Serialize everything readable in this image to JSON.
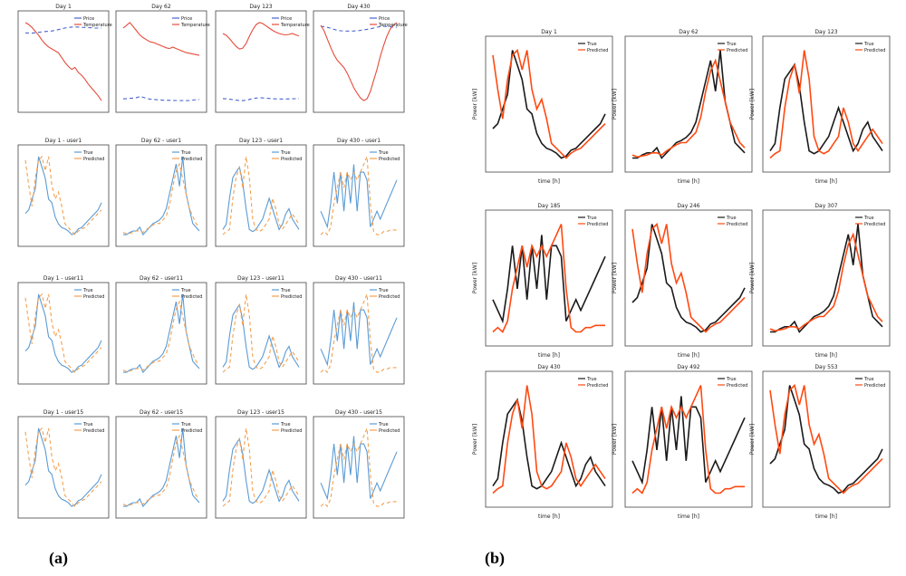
{
  "labels": {
    "a": "(a)",
    "b": "(b)"
  },
  "legend": {
    "price": "Price",
    "temperature": "Temperature",
    "true": "True",
    "predicted": "Predicted"
  },
  "axis": {
    "power": "Power [kW]",
    "time": "time [h]"
  },
  "colors": {
    "true_dark": "#1a1a1a",
    "pred_orange": "#ff4a12",
    "left_blue": "#5b9bd5",
    "left_orange": "#f5a04f",
    "left_red": "#e64b3b",
    "left_dashblue": "#4863cf"
  },
  "chart_data": [
    {
      "type": "line",
      "panel": "a",
      "title": "Day 1",
      "x": [
        0,
        1,
        2,
        3,
        4,
        5,
        6,
        7,
        8,
        9,
        10,
        11,
        12,
        13,
        14,
        15,
        16,
        17,
        18,
        19,
        20,
        21,
        22,
        23
      ],
      "series": [
        {
          "name": "Price",
          "values": [
            0.44,
            0.42,
            0.41,
            0.45,
            0.5,
            0.54,
            0.58,
            0.61,
            0.64,
            0.7,
            0.78,
            0.86,
            0.94,
            1.0,
            1.04,
            1.05,
            1.04,
            1.02,
            1.0,
            0.98,
            0.96,
            0.94,
            0.93,
            0.92
          ]
        },
        {
          "name": "Temperature",
          "values": [
            1.5,
            1.3,
            1.0,
            0.6,
            0.2,
            -0.3,
            -0.7,
            -1.0,
            -1.2,
            -1.4,
            -1.6,
            -2.1,
            -2.6,
            -3.0,
            -3.3,
            -3.1,
            -3.6,
            -3.9,
            -4.3,
            -4.8,
            -5.2,
            -5.6,
            -6.0,
            -6.5
          ]
        }
      ]
    },
    {
      "type": "line",
      "panel": "a",
      "title": "Day 62",
      "x": [
        0,
        1,
        2,
        3,
        4,
        5,
        6,
        7,
        8,
        9,
        10,
        11,
        12,
        13,
        14,
        15,
        16,
        17,
        18,
        19,
        20,
        21,
        22,
        23
      ],
      "series": [
        {
          "name": "Price",
          "values": [
            0.62,
            0.66,
            0.7,
            0.74,
            0.8,
            0.98,
            0.86,
            0.7,
            0.6,
            0.55,
            0.5,
            0.46,
            0.44,
            0.42,
            0.41,
            0.4,
            0.39,
            0.38,
            0.37,
            0.37,
            0.4,
            0.45,
            0.5,
            0.53
          ]
        },
        {
          "name": "Temperature",
          "values": [
            11.0,
            11.4,
            11.8,
            11.2,
            10.6,
            10.0,
            9.6,
            9.3,
            9.0,
            8.9,
            8.7,
            8.5,
            8.3,
            8.1,
            8.0,
            8.2,
            8.0,
            7.8,
            7.6,
            7.4,
            7.3,
            7.2,
            7.1,
            7.0
          ]
        }
      ]
    },
    {
      "type": "line",
      "panel": "a",
      "title": "Day 123",
      "x": [
        0,
        1,
        2,
        3,
        4,
        5,
        6,
        7,
        8,
        9,
        10,
        11,
        12,
        13,
        14,
        15,
        16,
        17,
        18,
        19,
        20,
        21,
        22,
        23
      ],
      "series": [
        {
          "name": "Price",
          "values": [
            0.78,
            0.74,
            0.66,
            0.55,
            0.44,
            0.36,
            0.34,
            0.42,
            0.6,
            0.78,
            0.9,
            0.96,
            0.94,
            0.88,
            0.82,
            0.76,
            0.72,
            0.7,
            0.69,
            0.7,
            0.72,
            0.74,
            0.76,
            0.78
          ]
        },
        {
          "name": "Temperature",
          "values": [
            15.0,
            14.6,
            13.9,
            13.0,
            12.2,
            11.6,
            11.8,
            12.8,
            14.4,
            15.8,
            16.9,
            17.4,
            17.2,
            16.7,
            16.2,
            15.7,
            15.3,
            15.0,
            14.8,
            14.7,
            14.8,
            15.0,
            14.7,
            14.5
          ]
        }
      ]
    },
    {
      "type": "line",
      "panel": "a",
      "title": "Day 430",
      "x": [
        0,
        1,
        2,
        3,
        4,
        5,
        6,
        7,
        8,
        9,
        10,
        11,
        12,
        13,
        14,
        15,
        16,
        17,
        18,
        19,
        20,
        21,
        22,
        23
      ],
      "series": [
        {
          "name": "Price",
          "values": [
            0.9,
            0.86,
            0.78,
            0.68,
            0.56,
            0.46,
            0.4,
            0.38,
            0.37,
            0.37,
            0.38,
            0.4,
            0.44,
            0.5,
            0.56,
            0.62,
            0.7,
            0.8,
            0.86,
            0.9,
            0.88,
            0.84,
            0.8,
            0.78
          ]
        },
        {
          "name": "Temperature",
          "values": [
            1.0,
            0.4,
            -0.5,
            -1.4,
            -2.2,
            -2.8,
            -3.2,
            -3.6,
            -4.2,
            -5.0,
            -5.8,
            -6.4,
            -6.9,
            -7.2,
            -7.0,
            -6.2,
            -5.0,
            -3.8,
            -2.4,
            -1.2,
            -0.2,
            0.6,
            1.0,
            1.3
          ]
        }
      ]
    },
    {
      "type": "line",
      "panel": "a",
      "title": "Day 1 - user1",
      "x": [
        0,
        1,
        2,
        3,
        4,
        5,
        6,
        7,
        8,
        9,
        10,
        11,
        12,
        13,
        14,
        15,
        16,
        17,
        18,
        19,
        20,
        21,
        22,
        23
      ],
      "series": [
        {
          "name": "True",
          "values": [
            1.1,
            1.15,
            1.3,
            1.45,
            1.9,
            1.75,
            1.6,
            1.3,
            1.25,
            1.05,
            0.95,
            0.9,
            0.88,
            0.85,
            0.8,
            0.82,
            0.88,
            0.9,
            0.95,
            1.0,
            1.05,
            1.1,
            1.15,
            1.25
          ]
        },
        {
          "name": "Predicted",
          "values": [
            1.85,
            1.5,
            1.2,
            1.6,
            1.85,
            1.9,
            1.7,
            1.9,
            1.5,
            1.3,
            1.4,
            1.2,
            0.95,
            0.9,
            0.85,
            0.8,
            0.85,
            0.88,
            0.9,
            0.95,
            1.0,
            1.05,
            1.1,
            1.15
          ]
        }
      ]
    },
    {
      "type": "line",
      "panel": "a",
      "title": "Day 62 - user1",
      "x": [
        0,
        1,
        2,
        3,
        4,
        5,
        6,
        7,
        8,
        9,
        10,
        11,
        12,
        13,
        14,
        15,
        16,
        17,
        18,
        19,
        20,
        21,
        22,
        23
      ],
      "series": [
        {
          "name": "True",
          "values": [
            0.95,
            0.95,
            0.98,
            1.0,
            1.0,
            1.05,
            0.95,
            1.0,
            1.05,
            1.1,
            1.12,
            1.15,
            1.2,
            1.3,
            1.5,
            1.7,
            1.9,
            1.6,
            2.0,
            1.5,
            1.3,
            1.1,
            1.05,
            1.0
          ]
        },
        {
          "name": "Predicted",
          "values": [
            0.98,
            0.96,
            0.97,
            0.98,
            1.0,
            1.0,
            0.98,
            1.02,
            1.05,
            1.08,
            1.1,
            1.1,
            1.15,
            1.2,
            1.35,
            1.6,
            1.8,
            1.9,
            1.7,
            1.5,
            1.3,
            1.2,
            1.1,
            1.05
          ]
        }
      ]
    },
    {
      "type": "line",
      "panel": "a",
      "title": "Day 123 - user1",
      "x": [
        0,
        1,
        2,
        3,
        4,
        5,
        6,
        7,
        8,
        9,
        10,
        11,
        12,
        13,
        14,
        15,
        16,
        17,
        18,
        19,
        20,
        21,
        22,
        23
      ],
      "series": [
        {
          "name": "True",
          "values": [
            1.0,
            1.05,
            1.3,
            1.5,
            1.55,
            1.6,
            1.45,
            1.2,
            1.0,
            0.98,
            1.0,
            1.05,
            1.1,
            1.2,
            1.3,
            1.2,
            1.1,
            1.0,
            1.05,
            1.15,
            1.2,
            1.1,
            1.05,
            1.0
          ]
        },
        {
          "name": "Predicted",
          "values": [
            0.95,
            0.98,
            1.0,
            1.3,
            1.5,
            1.6,
            1.4,
            1.7,
            1.5,
            1.1,
            1.0,
            0.98,
            1.0,
            1.05,
            1.1,
            1.3,
            1.2,
            1.05,
            1.0,
            1.05,
            1.1,
            1.15,
            1.1,
            1.05
          ]
        }
      ]
    },
    {
      "type": "line",
      "panel": "a",
      "title": "Day 430 - user1",
      "x": [
        0,
        1,
        2,
        3,
        4,
        5,
        6,
        7,
        8,
        9,
        10,
        11,
        12,
        13,
        14,
        15,
        16,
        17,
        18,
        19,
        20,
        21,
        22,
        23
      ],
      "series": [
        {
          "name": "True",
          "values": [
            1.05,
            1.0,
            0.95,
            1.1,
            1.3,
            1.1,
            1.3,
            1.05,
            1.3,
            1.1,
            1.35,
            1.05,
            1.3,
            1.3,
            1.25,
            0.95,
            1.0,
            1.05,
            1.0,
            1.05,
            1.1,
            1.15,
            1.2,
            1.25
          ]
        },
        {
          "name": "Predicted",
          "values": [
            0.9,
            0.92,
            0.9,
            0.95,
            1.1,
            1.2,
            1.3,
            1.2,
            1.3,
            1.25,
            1.3,
            1.25,
            1.3,
            1.35,
            1.4,
            1.1,
            0.92,
            0.9,
            0.9,
            0.92,
            0.92,
            0.93,
            0.93,
            0.93
          ]
        }
      ]
    }
  ]
}
